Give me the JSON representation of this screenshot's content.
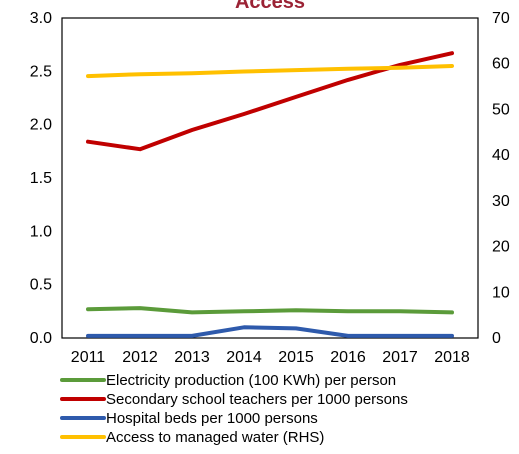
{
  "chart_data": {
    "type": "line",
    "title": "Access",
    "title_color": "#9B2335",
    "x": [
      "2011",
      "2012",
      "2013",
      "2014",
      "2015",
      "2016",
      "2017",
      "2018"
    ],
    "y_left_ticks": [
      "0.0",
      "0.5",
      "1.0",
      "1.5",
      "2.0",
      "2.5",
      "3.0"
    ],
    "y_right_ticks": [
      "0",
      "10",
      "20",
      "30",
      "40",
      "50",
      "60",
      "70"
    ],
    "ylim_left": [
      0,
      3.0
    ],
    "ylim_right": [
      0,
      70
    ],
    "grid": false,
    "legend_position": "bottom",
    "series": [
      {
        "name": "Electricity production (100 KWh) per person",
        "axis": "left",
        "color": "#5B9B3A",
        "values": [
          0.27,
          0.28,
          0.24,
          0.25,
          0.26,
          0.25,
          0.25,
          0.24
        ]
      },
      {
        "name": "Secondary school teachers per 1000 persons",
        "axis": "left",
        "color": "#C00000",
        "values": [
          1.84,
          1.77,
          1.95,
          2.1,
          2.26,
          2.42,
          2.56,
          2.67
        ]
      },
      {
        "name": "Hospital beds per 1000 persons",
        "axis": "left",
        "color": "#2E5AAC",
        "values": [
          0.02,
          0.02,
          0.02,
          0.1,
          0.09,
          0.02,
          0.02,
          0.02
        ]
      },
      {
        "name": "Access to managed water (RHS)",
        "axis": "right",
        "color": "#FFC000",
        "values": [
          57.3,
          57.7,
          57.9,
          58.3,
          58.6,
          58.9,
          59.1,
          59.5
        ]
      }
    ]
  }
}
